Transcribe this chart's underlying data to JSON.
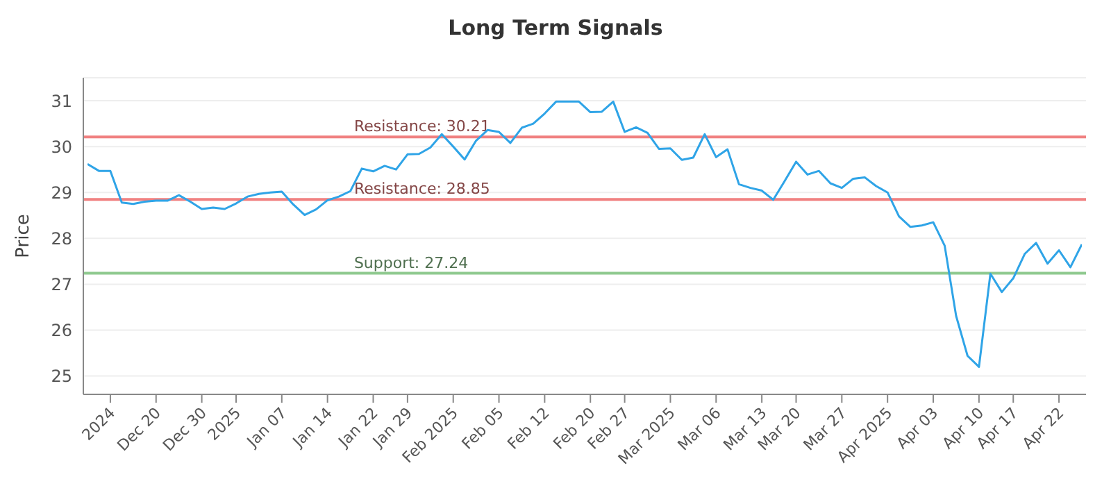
{
  "chart_data": {
    "type": "line",
    "title": "Long Term Signals",
    "ylabel": "Price",
    "categories": [
      null,
      null,
      "2024",
      null,
      null,
      null,
      "Dec 20",
      null,
      null,
      null,
      "Dec 30",
      null,
      null,
      "2025",
      null,
      null,
      null,
      "Jan 07",
      null,
      null,
      null,
      "Jan 14",
      null,
      null,
      null,
      "Jan 22",
      null,
      null,
      "Jan 29",
      null,
      null,
      null,
      "Feb 2025",
      null,
      null,
      null,
      "Feb 05",
      null,
      null,
      null,
      "Feb 12",
      null,
      null,
      null,
      "Feb 20",
      null,
      null,
      "Feb 27",
      null,
      null,
      null,
      "Mar 2025",
      null,
      null,
      null,
      "Mar 06",
      null,
      null,
      null,
      "Mar 13",
      null,
      null,
      "Mar 20",
      null,
      null,
      null,
      "Mar 27",
      null,
      null,
      null,
      "Apr 2025",
      null,
      null,
      null,
      "Apr 03",
      null,
      null,
      null,
      "Apr 10",
      null,
      null,
      "Apr 17",
      null,
      null,
      null,
      "Apr 22",
      null,
      null
    ],
    "series": [
      {
        "color": "#2fa4e7",
        "values": [
          29.62,
          29.47,
          29.47,
          28.78,
          28.75,
          28.8,
          28.82,
          28.82,
          28.94,
          28.8,
          28.64,
          28.67,
          28.64,
          28.76,
          28.91,
          28.97,
          29.0,
          29.02,
          28.74,
          28.51,
          28.63,
          28.83,
          28.91,
          29.03,
          29.52,
          29.46,
          29.58,
          29.5,
          29.83,
          29.84,
          29.98,
          30.27,
          30.0,
          29.72,
          30.13,
          30.36,
          30.32,
          30.08,
          30.41,
          30.5,
          30.72,
          30.98,
          30.98,
          30.98,
          30.75,
          30.76,
          30.98,
          30.32,
          30.42,
          30.3,
          29.95,
          29.96,
          29.71,
          29.76,
          30.27,
          29.77,
          29.94,
          29.18,
          29.1,
          29.04,
          28.84,
          29.25,
          29.67,
          29.39,
          29.47,
          29.2,
          29.1,
          29.3,
          29.33,
          29.14,
          29.0,
          28.48,
          28.25,
          28.28,
          28.35,
          27.84,
          26.31,
          25.44,
          25.2,
          27.23,
          26.83,
          27.13,
          27.66,
          27.9,
          27.45,
          27.74,
          27.37,
          27.87
        ]
      }
    ],
    "ylim": [
      24.6,
      31.5
    ],
    "yticks": [
      25,
      26,
      27,
      28,
      29,
      30,
      31
    ],
    "grid": "y",
    "marker": "none",
    "line_style": "solid",
    "ref_lines": [
      {
        "axis": "y",
        "value": 30.21,
        "label": "Resistance: 30.21",
        "color": "#f08080"
      },
      {
        "axis": "y",
        "value": 28.85,
        "label": "Resistance: 28.85",
        "color": "#f08080"
      },
      {
        "axis": "y",
        "value": 27.24,
        "label": "Support: 27.24",
        "color": "#8fc98f"
      }
    ]
  }
}
